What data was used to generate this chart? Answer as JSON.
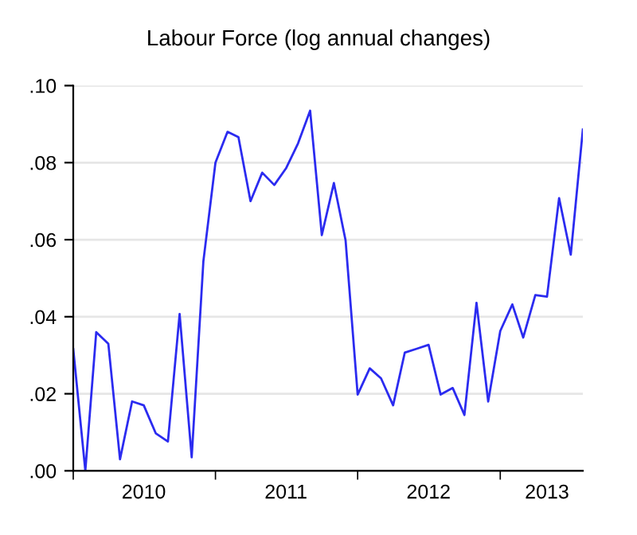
{
  "chart_data": {
    "type": "line",
    "title": "Labour Force (log annual changes)",
    "x": [
      "2010-01",
      "2010-02",
      "2010-03",
      "2010-04",
      "2010-05",
      "2010-06",
      "2010-07",
      "2010-08",
      "2010-09",
      "2010-10",
      "2010-11",
      "2010-12",
      "2011-01",
      "2011-02",
      "2011-03",
      "2011-04",
      "2011-05",
      "2011-06",
      "2011-07",
      "2011-08",
      "2011-09",
      "2011-10",
      "2011-11",
      "2011-12",
      "2012-01",
      "2012-02",
      "2012-03",
      "2012-04",
      "2012-05",
      "2012-06",
      "2012-07",
      "2012-08",
      "2012-09",
      "2012-10",
      "2012-11",
      "2012-12",
      "2013-01",
      "2013-02",
      "2013-03",
      "2013-04",
      "2013-05",
      "2013-06",
      "2013-07",
      "2013-08"
    ],
    "series": [
      {
        "color": "#2b2bf0",
        "values": [
          0.0316,
          0.0,
          0.036,
          0.033,
          0.003,
          0.018,
          0.017,
          0.0097,
          0.0076,
          0.0407,
          0.0035,
          0.0544,
          0.08,
          0.088,
          0.0866,
          0.07,
          0.0774,
          0.0742,
          0.0785,
          0.085,
          0.0935,
          0.0612,
          0.0747,
          0.0598,
          0.0198,
          0.0266,
          0.024,
          0.017,
          0.0307,
          0.0317,
          0.0327,
          0.0198,
          0.0215,
          0.0145,
          0.0436,
          0.018,
          0.0363,
          0.0432,
          0.0346,
          0.0456,
          0.0452,
          0.0708,
          0.0561,
          0.0886
        ]
      }
    ],
    "xlim": [
      "2010-01",
      "2013-08"
    ],
    "xticks": [
      {
        "value": "2010-01",
        "label": null
      },
      {
        "value": "2010-07",
        "label": "2010"
      },
      {
        "value": "2011-01",
        "label": null
      },
      {
        "value": "2011-07",
        "label": "2011"
      },
      {
        "value": "2012-01",
        "label": null
      },
      {
        "value": "2012-07",
        "label": "2012"
      },
      {
        "value": "2013-01",
        "label": null
      },
      {
        "value": "2013-05",
        "label": "2013"
      }
    ],
    "ylim": [
      0,
      0.1
    ],
    "yticks": [
      {
        "value": 0,
        "label": ".00"
      },
      {
        "value": 0.02,
        "label": ".02"
      },
      {
        "value": 0.04,
        "label": ".04"
      },
      {
        "value": 0.06,
        "label": ".06"
      },
      {
        "value": 0.08,
        "label": ".08"
      },
      {
        "value": 0.1,
        "label": ".10"
      }
    ],
    "grid": "y",
    "legend": false,
    "marker": "none",
    "line_style": "solid"
  }
}
